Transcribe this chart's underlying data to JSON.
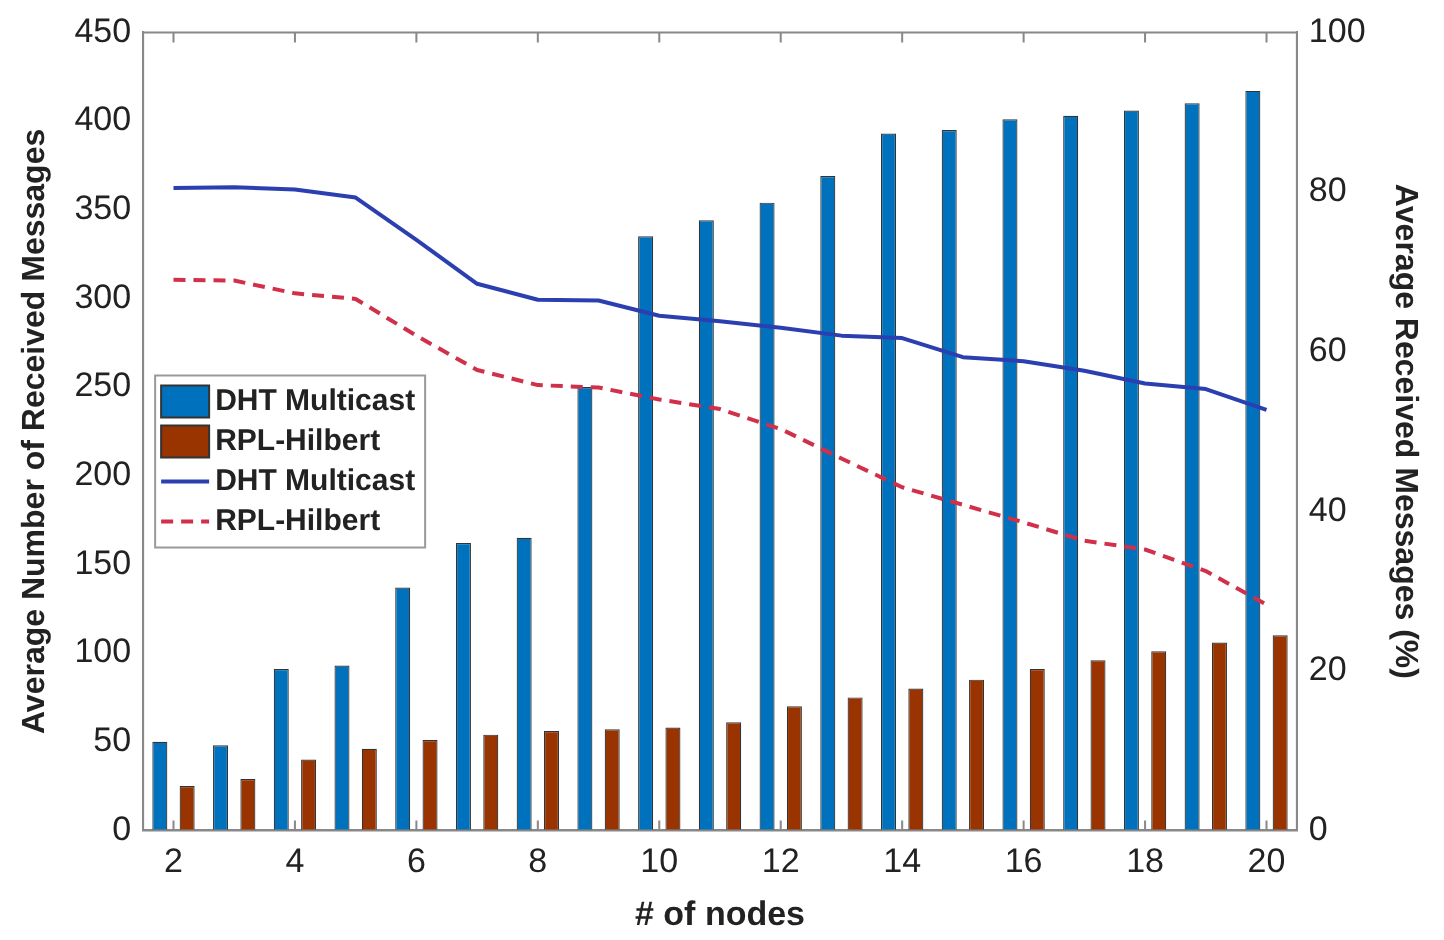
{
  "chart_data": {
    "type": "bar",
    "xlabel": "# of nodes",
    "ylabel": "Average Number of Received Messages",
    "y2label": "Average Received Messages (%)",
    "categories": [
      "2",
      null,
      "4",
      null,
      "6",
      null,
      "8",
      null,
      "10",
      null,
      "12",
      null,
      "14",
      null,
      "16",
      null,
      "18",
      null,
      "20"
    ],
    "series": [
      {
        "name": "DHT Multicast",
        "color": "#0072bd",
        "values": [
          50,
          48,
          91,
          93,
          137,
          162,
          165,
          250,
          335,
          344,
          354,
          369,
          393,
          395,
          401,
          403,
          406,
          410,
          417
        ]
      },
      {
        "name": "RPL-Hilbert",
        "color": "#993300",
        "values": [
          25,
          29,
          40,
          46,
          51,
          54,
          56,
          57,
          58,
          61,
          70,
          75,
          80,
          85,
          91,
          96,
          101,
          106,
          110
        ]
      },
      {
        "name": "DHT Multicast",
        "type": "line",
        "axis": "y2",
        "color": "#2b3fb0",
        "line_style": "solid",
        "values": [
          80.5,
          80.6,
          80.3,
          79.3,
          74,
          68.5,
          66.5,
          66.4,
          64.5,
          63.8,
          63,
          62,
          61.7,
          59.3,
          58.8,
          57.6,
          56,
          55.3,
          52.7
        ]
      },
      {
        "name": "RPL-Hilbert",
        "type": "line",
        "axis": "y2",
        "color": "#d0304a",
        "line_style": "dashed",
        "values": [
          69,
          68.9,
          67.3,
          66.6,
          62,
          57.7,
          55.8,
          55.5,
          54,
          52.8,
          50.3,
          46.6,
          43,
          40.8,
          38.6,
          36.3,
          35.2,
          32.5,
          28.3
        ]
      }
    ],
    "ylim": [
      0,
      450
    ],
    "yticks": [
      0,
      50,
      100,
      150,
      200,
      250,
      300,
      350,
      400,
      450
    ],
    "y2lim": [
      0,
      100
    ],
    "y2ticks": [
      0,
      20,
      40,
      60,
      80,
      100
    ],
    "grid": false,
    "legend": "left",
    "marker": "none"
  }
}
